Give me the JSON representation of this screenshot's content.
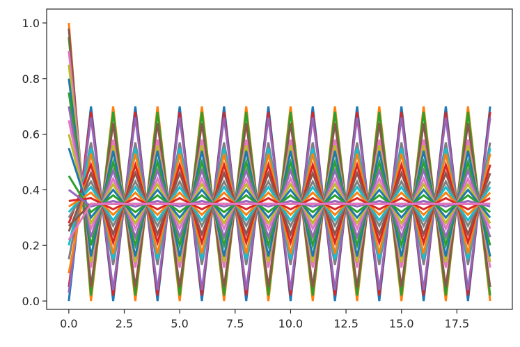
{
  "chart_data": {
    "type": "line",
    "title": "",
    "xlabel": "",
    "ylabel": "",
    "xlim": [
      -1,
      20
    ],
    "ylim": [
      -0.03,
      1.05
    ],
    "grid": false,
    "legend": "none",
    "x": [
      0,
      1,
      2,
      3,
      4,
      5,
      6,
      7,
      8,
      9,
      10,
      11,
      12,
      13,
      14,
      15,
      16,
      17,
      18,
      19
    ],
    "x_ticks": [
      0,
      2.5,
      5,
      7.5,
      10,
      12.5,
      15,
      17.5
    ],
    "x_tick_labels": [
      "0.0",
      "2.5",
      "5.0",
      "7.5",
      "10.0",
      "12.5",
      "15.0",
      "17.5"
    ],
    "y_ticks": [
      0,
      0.2,
      0.4,
      0.6,
      0.8,
      1.0
    ],
    "y_tick_labels": [
      "0.0",
      "0.2",
      "0.4",
      "0.6",
      "0.8",
      "1.0"
    ],
    "colors": [
      "#1f77b4",
      "#ff7f0e",
      "#2ca02c",
      "#d62728",
      "#9467bd",
      "#8c564b",
      "#e377c2",
      "#7f7f7f",
      "#bcbd22",
      "#17becf"
    ],
    "series": [
      {
        "values": [
          0.0,
          0.7,
          0.0,
          0.7,
          0.0,
          0.7,
          0.0,
          0.7,
          0.0,
          0.7,
          0.0,
          0.7,
          0.0,
          0.7,
          0.0,
          0.7,
          0.0,
          0.7,
          0.0,
          0.7
        ]
      },
      {
        "values": [
          1.0,
          0.0,
          0.7,
          0.0,
          0.7,
          0.0,
          0.7,
          0.0,
          0.7,
          0.0,
          0.7,
          0.0,
          0.7,
          0.0,
          0.7,
          0.0,
          0.7,
          0.0,
          0.7,
          0.0
        ]
      },
      {
        "values": [
          0.95,
          0.02,
          0.68,
          0.02,
          0.68,
          0.02,
          0.68,
          0.02,
          0.68,
          0.02,
          0.68,
          0.02,
          0.68,
          0.02,
          0.68,
          0.02,
          0.68,
          0.02,
          0.68,
          0.02
        ]
      },
      {
        "values": [
          0.05,
          0.68,
          0.02,
          0.68,
          0.02,
          0.68,
          0.02,
          0.68,
          0.02,
          0.68,
          0.02,
          0.68,
          0.02,
          0.68,
          0.02,
          0.68,
          0.02,
          0.68,
          0.02,
          0.68
        ]
      },
      {
        "values": [
          0.03,
          0.66,
          0.04,
          0.66,
          0.04,
          0.66,
          0.04,
          0.66,
          0.04,
          0.66,
          0.04,
          0.66,
          0.04,
          0.66,
          0.04,
          0.66,
          0.04,
          0.66,
          0.04,
          0.66
        ]
      },
      {
        "values": [
          0.98,
          0.05,
          0.64,
          0.05,
          0.64,
          0.05,
          0.64,
          0.05,
          0.64,
          0.05,
          0.64,
          0.05,
          0.64,
          0.05,
          0.64,
          0.05,
          0.64,
          0.05,
          0.64,
          0.05
        ]
      },
      {
        "values": [
          0.9,
          0.12,
          0.58,
          0.12,
          0.58,
          0.12,
          0.58,
          0.12,
          0.58,
          0.12,
          0.58,
          0.12,
          0.58,
          0.12,
          0.58,
          0.12,
          0.58,
          0.12,
          0.58,
          0.12
        ]
      },
      {
        "values": [
          0.15,
          0.57,
          0.13,
          0.57,
          0.13,
          0.57,
          0.13,
          0.57,
          0.13,
          0.57,
          0.13,
          0.57,
          0.13,
          0.57,
          0.13,
          0.57,
          0.13,
          0.57,
          0.13,
          0.57
        ]
      },
      {
        "values": [
          0.85,
          0.14,
          0.56,
          0.14,
          0.56,
          0.14,
          0.56,
          0.14,
          0.56,
          0.14,
          0.56,
          0.14,
          0.56,
          0.14,
          0.56,
          0.14,
          0.56,
          0.14,
          0.56,
          0.14
        ]
      },
      {
        "values": [
          0.2,
          0.55,
          0.15,
          0.55,
          0.15,
          0.55,
          0.15,
          0.55,
          0.15,
          0.55,
          0.15,
          0.55,
          0.15,
          0.55,
          0.15,
          0.55,
          0.15,
          0.55,
          0.15,
          0.55
        ]
      },
      {
        "values": [
          0.8,
          0.16,
          0.54,
          0.16,
          0.54,
          0.16,
          0.54,
          0.16,
          0.54,
          0.16,
          0.54,
          0.16,
          0.54,
          0.16,
          0.54,
          0.16,
          0.54,
          0.16,
          0.54,
          0.16
        ]
      },
      {
        "values": [
          0.1,
          0.53,
          0.17,
          0.53,
          0.17,
          0.53,
          0.17,
          0.53,
          0.17,
          0.53,
          0.17,
          0.53,
          0.17,
          0.53,
          0.17,
          0.53,
          0.17,
          0.53,
          0.17,
          0.53
        ]
      },
      {
        "values": [
          0.75,
          0.2,
          0.5,
          0.2,
          0.5,
          0.2,
          0.5,
          0.2,
          0.5,
          0.2,
          0.5,
          0.2,
          0.5,
          0.2,
          0.5,
          0.2,
          0.5,
          0.2,
          0.5,
          0.2
        ]
      },
      {
        "values": [
          0.28,
          0.49,
          0.21,
          0.49,
          0.21,
          0.49,
          0.21,
          0.49,
          0.21,
          0.49,
          0.21,
          0.49,
          0.21,
          0.49,
          0.21,
          0.49,
          0.21,
          0.49,
          0.21,
          0.49
        ]
      },
      {
        "values": [
          0.7,
          0.23,
          0.47,
          0.23,
          0.47,
          0.23,
          0.47,
          0.23,
          0.47,
          0.23,
          0.47,
          0.23,
          0.47,
          0.23,
          0.47,
          0.23,
          0.47,
          0.23,
          0.47,
          0.23
        ]
      },
      {
        "values": [
          0.25,
          0.46,
          0.24,
          0.46,
          0.24,
          0.46,
          0.24,
          0.46,
          0.24,
          0.46,
          0.24,
          0.46,
          0.24,
          0.46,
          0.24,
          0.46,
          0.24,
          0.46,
          0.24,
          0.46
        ]
      },
      {
        "values": [
          0.65,
          0.26,
          0.44,
          0.26,
          0.44,
          0.26,
          0.44,
          0.26,
          0.44,
          0.26,
          0.44,
          0.26,
          0.44,
          0.26,
          0.44,
          0.26,
          0.44,
          0.26,
          0.44,
          0.26
        ]
      },
      {
        "values": [
          0.3,
          0.43,
          0.27,
          0.43,
          0.27,
          0.43,
          0.27,
          0.43,
          0.27,
          0.43,
          0.27,
          0.43,
          0.27,
          0.43,
          0.27,
          0.43,
          0.27,
          0.43,
          0.27,
          0.43
        ]
      },
      {
        "values": [
          0.6,
          0.28,
          0.42,
          0.28,
          0.42,
          0.28,
          0.42,
          0.28,
          0.42,
          0.28,
          0.42,
          0.28,
          0.42,
          0.28,
          0.42,
          0.28,
          0.42,
          0.28,
          0.42,
          0.28
        ]
      },
      {
        "values": [
          0.32,
          0.41,
          0.29,
          0.41,
          0.29,
          0.41,
          0.29,
          0.41,
          0.29,
          0.41,
          0.29,
          0.41,
          0.29,
          0.41,
          0.29,
          0.41,
          0.29,
          0.41,
          0.29,
          0.41
        ]
      },
      {
        "values": [
          0.55,
          0.3,
          0.4,
          0.3,
          0.4,
          0.3,
          0.4,
          0.3,
          0.4,
          0.3,
          0.4,
          0.3,
          0.4,
          0.3,
          0.4,
          0.3,
          0.4,
          0.3,
          0.4,
          0.3
        ]
      },
      {
        "values": [
          0.34,
          0.39,
          0.31,
          0.39,
          0.31,
          0.39,
          0.31,
          0.39,
          0.31,
          0.39,
          0.31,
          0.39,
          0.31,
          0.39,
          0.31,
          0.39,
          0.31,
          0.39,
          0.31,
          0.39
        ]
      },
      {
        "values": [
          0.45,
          0.32,
          0.38,
          0.32,
          0.38,
          0.32,
          0.38,
          0.32,
          0.38,
          0.32,
          0.38,
          0.32,
          0.38,
          0.32,
          0.38,
          0.32,
          0.38,
          0.32,
          0.38,
          0.32
        ]
      },
      {
        "values": [
          0.36,
          0.37,
          0.33,
          0.37,
          0.33,
          0.37,
          0.33,
          0.37,
          0.33,
          0.37,
          0.33,
          0.37,
          0.33,
          0.37,
          0.33,
          0.37,
          0.33,
          0.37,
          0.33,
          0.37
        ]
      },
      {
        "values": [
          0.4,
          0.34,
          0.36,
          0.34,
          0.36,
          0.34,
          0.36,
          0.34,
          0.36,
          0.34,
          0.36,
          0.34,
          0.36,
          0.34,
          0.36,
          0.34,
          0.36,
          0.34,
          0.36,
          0.34
        ]
      },
      {
        "values": [
          0.27,
          0.35,
          0.35,
          0.35,
          0.35,
          0.35,
          0.35,
          0.35,
          0.35,
          0.35,
          0.35,
          0.35,
          0.35,
          0.35,
          0.35,
          0.35,
          0.35,
          0.35,
          0.35,
          0.35
        ]
      },
      {
        "values": [
          0.22,
          0.35,
          0.35,
          0.35,
          0.35,
          0.35,
          0.35,
          0.35,
          0.35,
          0.35,
          0.35,
          0.35,
          0.35,
          0.35,
          0.35,
          0.35,
          0.35,
          0.35,
          0.35,
          0.35
        ]
      }
    ]
  }
}
